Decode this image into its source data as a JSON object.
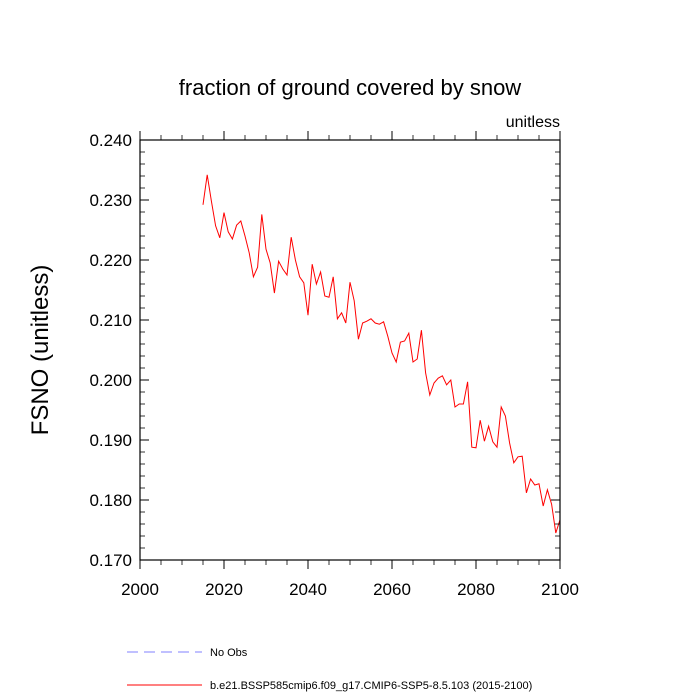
{
  "chart_data": {
    "type": "line",
    "title": "fraction of ground covered by snow",
    "units_label": "unitless",
    "xlabel": "",
    "ylabel": "FSNO  (unitless)",
    "xlim": [
      2000,
      2100
    ],
    "ylim": [
      0.17,
      0.24
    ],
    "xticks": [
      2000,
      2020,
      2040,
      2060,
      2080,
      2100
    ],
    "xtick_labels": [
      "2000",
      "2020",
      "2040",
      "2060",
      "2080",
      "2100"
    ],
    "yticks": [
      0.17,
      0.18,
      0.19,
      0.2,
      0.21,
      0.22,
      0.23,
      0.24
    ],
    "ytick_labels": [
      "0.170",
      "0.180",
      "0.190",
      "0.200",
      "0.210",
      "0.220",
      "0.230",
      "0.240"
    ],
    "grid": false,
    "legend_position": "bottom-left, below plot",
    "series": [
      {
        "name": "No Obs",
        "color": "#8080ff",
        "style": "dashed",
        "x": [],
        "values": []
      },
      {
        "name": "b.e21.BSSP585cmip6.f09_g17.CMIP6-SSP5-8.5.103 (2015-2100)",
        "color": "#ff0000",
        "style": "solid",
        "x": [
          2015,
          2016,
          2017,
          2018,
          2019,
          2020,
          2021,
          2022,
          2023,
          2024,
          2025,
          2026,
          2027,
          2028,
          2029,
          2030,
          2031,
          2032,
          2033,
          2034,
          2035,
          2036,
          2037,
          2038,
          2039,
          2040,
          2041,
          2042,
          2043,
          2044,
          2045,
          2046,
          2047,
          2048,
          2049,
          2050,
          2051,
          2052,
          2053,
          2054,
          2055,
          2056,
          2057,
          2058,
          2059,
          2060,
          2061,
          2062,
          2063,
          2064,
          2065,
          2066,
          2067,
          2068,
          2069,
          2070,
          2071,
          2072,
          2073,
          2074,
          2075,
          2076,
          2077,
          2078,
          2079,
          2080,
          2081,
          2082,
          2083,
          2084,
          2085,
          2086,
          2087,
          2088,
          2089,
          2090,
          2091,
          2092,
          2093,
          2094,
          2095,
          2096,
          2097,
          2098,
          2099,
          2100
        ],
        "values": [
          0.2292,
          0.2342,
          0.2298,
          0.2257,
          0.2237,
          0.2279,
          0.2247,
          0.2235,
          0.2258,
          0.2265,
          0.224,
          0.2212,
          0.2172,
          0.2188,
          0.2276,
          0.2218,
          0.2195,
          0.2145,
          0.2198,
          0.2185,
          0.2175,
          0.2238,
          0.22,
          0.2172,
          0.2162,
          0.2108,
          0.2193,
          0.216,
          0.218,
          0.214,
          0.2138,
          0.2172,
          0.2102,
          0.2112,
          0.2095,
          0.2163,
          0.2132,
          0.2068,
          0.2095,
          0.2098,
          0.2102,
          0.2095,
          0.2093,
          0.2097,
          0.2073,
          0.2045,
          0.203,
          0.2063,
          0.2065,
          0.2078,
          0.203,
          0.2035,
          0.2083,
          0.2012,
          0.1975,
          0.1995,
          0.2003,
          0.2007,
          0.1992,
          0.2,
          0.1955,
          0.196,
          0.196,
          0.1997,
          0.1888,
          0.1887,
          0.1933,
          0.1898,
          0.1923,
          0.1897,
          0.1888,
          0.1955,
          0.194,
          0.1895,
          0.1862,
          0.1872,
          0.1873,
          0.1812,
          0.1835,
          0.1825,
          0.1827,
          0.179,
          0.1817,
          0.1793,
          0.1745,
          0.1767
        ]
      }
    ]
  }
}
